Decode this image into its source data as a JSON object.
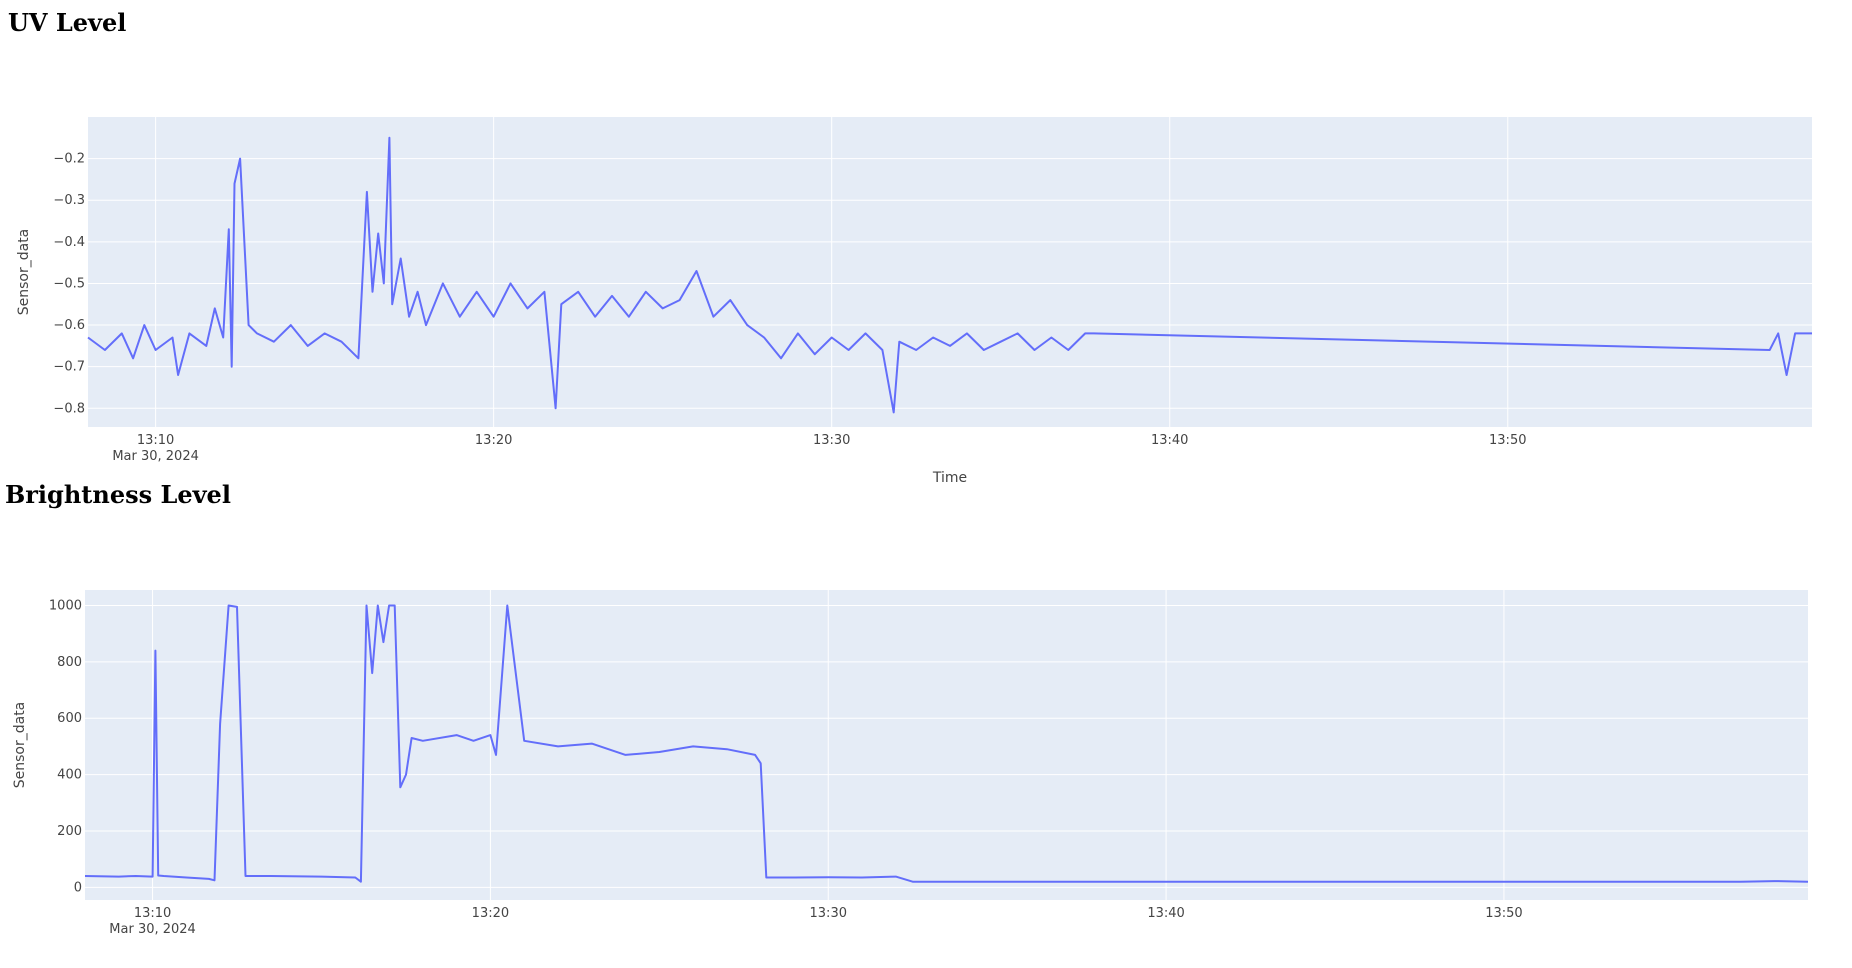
{
  "sections": {
    "uv_title": "UV Level",
    "brightness_title": "Brightness Level"
  },
  "chart_data": [
    {
      "id": "uv",
      "type": "line",
      "color": "#636efa",
      "xlabel": "Time",
      "ylabel": "Sensor_data",
      "x_range": [
        "2024-03-30 13:08:00",
        "2024-03-30 13:59:00"
      ],
      "ylim": [
        -0.845,
        -0.1
      ],
      "yticks": [
        -0.2,
        -0.3,
        -0.4,
        -0.5,
        -0.6,
        -0.7,
        -0.8
      ],
      "ytick_labels": [
        "−0.2",
        "−0.3",
        "−0.4",
        "−0.5",
        "−0.6",
        "−0.7",
        "−0.8"
      ],
      "xticks": [
        "2024-03-30 13:10",
        "2024-03-30 13:20",
        "2024-03-30 13:30",
        "2024-03-30 13:40",
        "2024-03-30 13:50"
      ],
      "xtick_labels": [
        "13:10",
        "13:20",
        "13:30",
        "13:40",
        "13:50"
      ],
      "xtick_sublabel": "Mar 30, 2024",
      "series": [
        {
          "x": [
            "2024-03-30 13:08:00",
            "2024-03-30 13:08:30",
            "2024-03-30 13:09:00",
            "2024-03-30 13:09:20",
            "2024-03-30 13:09:40",
            "2024-03-30 13:10:00",
            "2024-03-30 13:10:30",
            "2024-03-30 13:10:40",
            "2024-03-30 13:11:00",
            "2024-03-30 13:11:30",
            "2024-03-30 13:11:45",
            "2024-03-30 13:12:00",
            "2024-03-30 13:12:10",
            "2024-03-30 13:12:15",
            "2024-03-30 13:12:20",
            "2024-03-30 13:12:30",
            "2024-03-30 13:12:45",
            "2024-03-30 13:13:00",
            "2024-03-30 13:13:30",
            "2024-03-30 13:14:00",
            "2024-03-30 13:14:30",
            "2024-03-30 13:15:00",
            "2024-03-30 13:15:30",
            "2024-03-30 13:16:00",
            "2024-03-30 13:16:15",
            "2024-03-30 13:16:25",
            "2024-03-30 13:16:35",
            "2024-03-30 13:16:45",
            "2024-03-30 13:16:55",
            "2024-03-30 13:17:00",
            "2024-03-30 13:17:15",
            "2024-03-30 13:17:30",
            "2024-03-30 13:17:45",
            "2024-03-30 13:18:00",
            "2024-03-30 13:18:30",
            "2024-03-30 13:19:00",
            "2024-03-30 13:19:30",
            "2024-03-30 13:20:00",
            "2024-03-30 13:20:30",
            "2024-03-30 13:21:00",
            "2024-03-30 13:21:30",
            "2024-03-30 13:21:50",
            "2024-03-30 13:22:00",
            "2024-03-30 13:22:30",
            "2024-03-30 13:23:00",
            "2024-03-30 13:23:30",
            "2024-03-30 13:24:00",
            "2024-03-30 13:24:30",
            "2024-03-30 13:25:00",
            "2024-03-30 13:25:30",
            "2024-03-30 13:26:00",
            "2024-03-30 13:26:30",
            "2024-03-30 13:27:00",
            "2024-03-30 13:27:30",
            "2024-03-30 13:28:00",
            "2024-03-30 13:28:30",
            "2024-03-30 13:29:00",
            "2024-03-30 13:29:30",
            "2024-03-30 13:30:00",
            "2024-03-30 13:30:30",
            "2024-03-30 13:31:00",
            "2024-03-30 13:31:30",
            "2024-03-30 13:31:50",
            "2024-03-30 13:32:00",
            "2024-03-30 13:32:30",
            "2024-03-30 13:33:00",
            "2024-03-30 13:33:30",
            "2024-03-30 13:34:00",
            "2024-03-30 13:34:30",
            "2024-03-30 13:35:00",
            "2024-03-30 13:35:30",
            "2024-03-30 13:36:00",
            "2024-03-30 13:36:30",
            "2024-03-30 13:37:00",
            "2024-03-30 13:37:30",
            "2024-03-30 13:37:45",
            "2024-03-30 13:57:45",
            "2024-03-30 13:58:00",
            "2024-03-30 13:58:15",
            "2024-03-30 13:58:30",
            "2024-03-30 13:59:00"
          ],
          "y": [
            -0.63,
            -0.66,
            -0.62,
            -0.68,
            -0.6,
            -0.66,
            -0.63,
            -0.72,
            -0.62,
            -0.65,
            -0.56,
            -0.63,
            -0.37,
            -0.7,
            -0.26,
            -0.2,
            -0.6,
            -0.62,
            -0.64,
            -0.6,
            -0.65,
            -0.62,
            -0.64,
            -0.68,
            -0.28,
            -0.52,
            -0.38,
            -0.5,
            -0.15,
            -0.55,
            -0.44,
            -0.58,
            -0.52,
            -0.6,
            -0.5,
            -0.58,
            -0.52,
            -0.58,
            -0.5,
            -0.56,
            -0.52,
            -0.8,
            -0.55,
            -0.52,
            -0.58,
            -0.53,
            -0.58,
            -0.52,
            -0.56,
            -0.54,
            -0.47,
            -0.58,
            -0.54,
            -0.6,
            -0.63,
            -0.68,
            -0.62,
            -0.67,
            -0.63,
            -0.66,
            -0.62,
            -0.66,
            -0.81,
            -0.64,
            -0.66,
            -0.63,
            -0.65,
            -0.62,
            -0.66,
            -0.64,
            -0.62,
            -0.66,
            -0.63,
            -0.66,
            -0.62,
            -0.62,
            -0.66,
            -0.62,
            -0.72,
            -0.62,
            -0.62
          ]
        }
      ]
    },
    {
      "id": "brightness",
      "type": "line",
      "color": "#636efa",
      "xlabel": "",
      "ylabel": "Sensor_data",
      "x_range": [
        "2024-03-30 13:08:00",
        "2024-03-30 13:59:00"
      ],
      "ylim": [
        -45,
        1055
      ],
      "yticks": [
        1000,
        800,
        600,
        400,
        200,
        0
      ],
      "ytick_labels": [
        "1000",
        "800",
        "600",
        "400",
        "200",
        "0"
      ],
      "xticks": [
        "2024-03-30 13:10",
        "2024-03-30 13:20",
        "2024-03-30 13:30",
        "2024-03-30 13:40",
        "2024-03-30 13:50"
      ],
      "xtick_labels": [
        "13:10",
        "13:20",
        "13:30",
        "13:40",
        "13:50"
      ],
      "xtick_sublabel": "Mar 30, 2024",
      "series": [
        {
          "x": [
            "2024-03-30 13:08:00",
            "2024-03-30 13:09:00",
            "2024-03-30 13:09:30",
            "2024-03-30 13:10:00",
            "2024-03-30 13:10:05",
            "2024-03-30 13:10:10",
            "2024-03-30 13:10:20",
            "2024-03-30 13:11:00",
            "2024-03-30 13:11:40",
            "2024-03-30 13:11:50",
            "2024-03-30 13:12:00",
            "2024-03-30 13:12:15",
            "2024-03-30 13:12:30",
            "2024-03-30 13:12:45",
            "2024-03-30 13:13:30",
            "2024-03-30 13:15:00",
            "2024-03-30 13:16:00",
            "2024-03-30 13:16:10",
            "2024-03-30 13:16:20",
            "2024-03-30 13:16:30",
            "2024-03-30 13:16:40",
            "2024-03-30 13:16:50",
            "2024-03-30 13:17:00",
            "2024-03-30 13:17:10",
            "2024-03-30 13:17:20",
            "2024-03-30 13:17:30",
            "2024-03-30 13:17:40",
            "2024-03-30 13:18:00",
            "2024-03-30 13:19:00",
            "2024-03-30 13:19:30",
            "2024-03-30 13:20:00",
            "2024-03-30 13:20:10",
            "2024-03-30 13:20:30",
            "2024-03-30 13:21:00",
            "2024-03-30 13:22:00",
            "2024-03-30 13:23:00",
            "2024-03-30 13:24:00",
            "2024-03-30 13:25:00",
            "2024-03-30 13:26:00",
            "2024-03-30 13:27:00",
            "2024-03-30 13:27:50",
            "2024-03-30 13:28:00",
            "2024-03-30 13:28:10",
            "2024-03-30 13:29:00",
            "2024-03-30 13:30:00",
            "2024-03-30 13:31:00",
            "2024-03-30 13:32:00",
            "2024-03-30 13:32:30",
            "2024-03-30 13:35:00",
            "2024-03-30 13:38:00",
            "2024-03-30 13:57:00",
            "2024-03-30 13:58:00",
            "2024-03-30 13:59:00"
          ],
          "y": [
            40,
            38,
            40,
            38,
            840,
            42,
            40,
            35,
            30,
            25,
            580,
            1000,
            995,
            40,
            40,
            38,
            35,
            20,
            1000,
            760,
            1000,
            870,
            1000,
            1000,
            355,
            400,
            530,
            520,
            540,
            520,
            540,
            470,
            1000,
            520,
            500,
            510,
            470,
            480,
            500,
            490,
            470,
            440,
            35,
            35,
            36,
            35,
            38,
            20,
            20,
            20,
            20,
            22,
            20
          ]
        }
      ]
    }
  ]
}
